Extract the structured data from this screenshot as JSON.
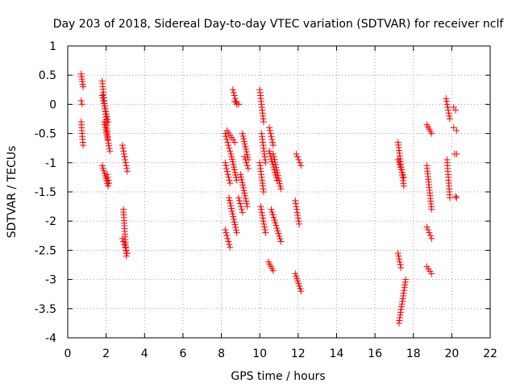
{
  "chart_data": {
    "type": "scatter",
    "title": "Day 203 of 2018, Sidereal Day-to-day VTEC variation (SDTVAR) for receiver nclf",
    "xlabel": "GPS time / hours",
    "ylabel": "SDTVAR / TECUs",
    "xlim": [
      0,
      22
    ],
    "ylim": [
      -4,
      1
    ],
    "xticks": [
      0,
      2,
      4,
      6,
      8,
      10,
      12,
      14,
      16,
      18,
      20,
      22
    ],
    "yticks": [
      1,
      0.5,
      0,
      -0.5,
      -1,
      -1.5,
      -2,
      -2.5,
      -3,
      -3.5,
      -4
    ],
    "grid": true,
    "marker": "+",
    "series_color": "#ff0000",
    "segments": [
      {
        "x": [
          0.7,
          0.8
        ],
        "y": [
          0.52,
          0.3
        ]
      },
      {
        "x": [
          0.7,
          0.75
        ],
        "y": [
          0.06,
          0.0
        ]
      },
      {
        "x": [
          0.7,
          0.8
        ],
        "y": [
          -0.3,
          -0.7
        ]
      },
      {
        "x": [
          1.8,
          2.1
        ],
        "y": [
          0.4,
          -0.6
        ]
      },
      {
        "x": [
          1.8,
          2.1
        ],
        "y": [
          0.15,
          -0.3
        ]
      },
      {
        "x": [
          1.9,
          2.2
        ],
        "y": [
          -0.3,
          -0.8
        ]
      },
      {
        "x": [
          1.8,
          2.1
        ],
        "y": [
          -1.05,
          -1.4
        ]
      },
      {
        "x": [
          2.05,
          2.15
        ],
        "y": [
          -1.2,
          -1.35
        ]
      },
      {
        "x": [
          2.85,
          3.1
        ],
        "y": [
          -0.7,
          -1.15
        ]
      },
      {
        "x": [
          2.9,
          3.05
        ],
        "y": [
          -1.8,
          -2.6
        ]
      },
      {
        "x": [
          2.85,
          3.1
        ],
        "y": [
          -2.3,
          -2.55
        ]
      },
      {
        "x": [
          8.2,
          8.45
        ],
        "y": [
          -0.5,
          -0.8
        ]
      },
      {
        "x": [
          8.3,
          8.7
        ],
        "y": [
          -0.45,
          -0.65
        ]
      },
      {
        "x": [
          8.2,
          8.45
        ],
        "y": [
          -1.0,
          -1.35
        ]
      },
      {
        "x": [
          8.5,
          8.8
        ],
        "y": [
          -0.85,
          -1.3
        ]
      },
      {
        "x": [
          8.2,
          8.45
        ],
        "y": [
          -2.15,
          -2.45
        ]
      },
      {
        "x": [
          8.4,
          8.8
        ],
        "y": [
          -1.6,
          -2.2
        ]
      },
      {
        "x": [
          8.6,
          8.8
        ],
        "y": [
          0.25,
          0.0
        ]
      },
      {
        "x": [
          8.7,
          8.9
        ],
        "y": [
          0.05,
          0.0
        ]
      },
      {
        "x": [
          9.1,
          9.4
        ],
        "y": [
          -0.5,
          -0.95
        ]
      },
      {
        "x": [
          9.0,
          9.35
        ],
        "y": [
          -1.2,
          -1.75
        ]
      },
      {
        "x": [
          9.2,
          9.4
        ],
        "y": [
          -0.9,
          -1.1
        ]
      },
      {
        "x": [
          8.9,
          9.1
        ],
        "y": [
          -1.6,
          -1.85
        ]
      },
      {
        "x": [
          10.0,
          10.2
        ],
        "y": [
          0.25,
          -0.3
        ]
      },
      {
        "x": [
          10.1,
          10.3
        ],
        "y": [
          -0.5,
          -1.0
        ]
      },
      {
        "x": [
          10.0,
          10.2
        ],
        "y": [
          -1.0,
          -1.5
        ]
      },
      {
        "x": [
          10.05,
          10.3
        ],
        "y": [
          -1.75,
          -2.2
        ]
      },
      {
        "x": [
          10.5,
          10.7
        ],
        "y": [
          -0.4,
          -0.7
        ]
      },
      {
        "x": [
          10.5,
          10.9
        ],
        "y": [
          -0.8,
          -1.3
        ]
      },
      {
        "x": [
          10.7,
          11.1
        ],
        "y": [
          -0.85,
          -1.45
        ]
      },
      {
        "x": [
          10.6,
          11.1
        ],
        "y": [
          -1.8,
          -2.35
        ]
      },
      {
        "x": [
          10.45,
          10.7
        ],
        "y": [
          -2.7,
          -2.85
        ]
      },
      {
        "x": [
          11.9,
          12.15
        ],
        "y": [
          -0.85,
          -1.05
        ]
      },
      {
        "x": [
          11.85,
          12.05
        ],
        "y": [
          -1.65,
          -2.05
        ]
      },
      {
        "x": [
          11.85,
          12.15
        ],
        "y": [
          -2.9,
          -3.2
        ]
      },
      {
        "x": [
          17.2,
          17.5
        ],
        "y": [
          -0.65,
          -1.4
        ]
      },
      {
        "x": [
          17.2,
          17.5
        ],
        "y": [
          -0.95,
          -1.25
        ]
      },
      {
        "x": [
          17.2,
          17.35
        ],
        "y": [
          -2.55,
          -2.8
        ]
      },
      {
        "x": [
          17.25,
          17.6
        ],
        "y": [
          -3.75,
          -3.0
        ]
      },
      {
        "x": [
          18.7,
          18.95
        ],
        "y": [
          -0.35,
          -0.5
        ]
      },
      {
        "x": [
          18.7,
          18.95
        ],
        "y": [
          -1.05,
          -1.8
        ]
      },
      {
        "x": [
          18.7,
          18.95
        ],
        "y": [
          -2.1,
          -2.3
        ]
      },
      {
        "x": [
          18.7,
          18.95
        ],
        "y": [
          -2.78,
          -2.9
        ]
      },
      {
        "x": [
          19.7,
          19.9
        ],
        "y": [
          0.1,
          -0.25
        ]
      },
      {
        "x": [
          19.75,
          19.9
        ],
        "y": [
          -0.95,
          -1.6
        ]
      },
      {
        "x": [
          20.1,
          20.2
        ],
        "y": [
          -0.05,
          -0.1
        ]
      },
      {
        "x": [
          20.1,
          20.25
        ],
        "y": [
          -0.4,
          -0.45
        ]
      },
      {
        "x": [
          20.15,
          20.25
        ],
        "y": [
          -0.85,
          -0.85
        ]
      },
      {
        "x": [
          20.2,
          20.25
        ],
        "y": [
          -1.58,
          -1.6
        ]
      }
    ]
  }
}
